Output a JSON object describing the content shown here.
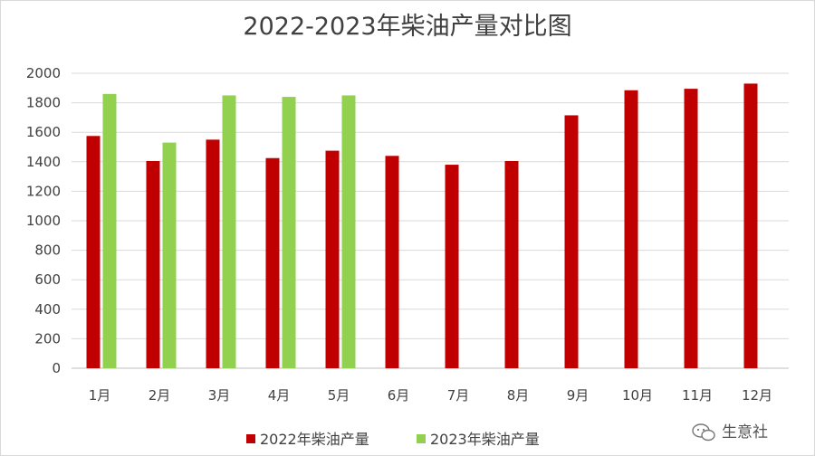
{
  "chart_data": {
    "type": "bar",
    "title": "2022-2023年柴油产量对比图",
    "categories": [
      "1月",
      "2月",
      "3月",
      "4月",
      "5月",
      "6月",
      "7月",
      "8月",
      "9月",
      "10月",
      "11月",
      "12月"
    ],
    "series": [
      {
        "name": "2022年柴油产量",
        "color": "#c00000",
        "values": [
          1575,
          1405,
          1550,
          1425,
          1475,
          1440,
          1380,
          1405,
          1715,
          1885,
          1895,
          1930
        ]
      },
      {
        "name": "2023年柴油产量",
        "color": "#92d050",
        "values": [
          1860,
          1530,
          1850,
          1840,
          1850,
          null,
          null,
          null,
          null,
          null,
          null,
          null
        ]
      }
    ],
    "y_ticks": [
      "0",
      "200",
      "400",
      "600",
      "800",
      "1000",
      "1200",
      "1400",
      "1600",
      "1800",
      "2000"
    ],
    "ylim": [
      0,
      2000
    ],
    "grid": true,
    "legend_position": "bottom"
  },
  "watermark": {
    "text": "生意社",
    "icon": "wechat-icon"
  }
}
